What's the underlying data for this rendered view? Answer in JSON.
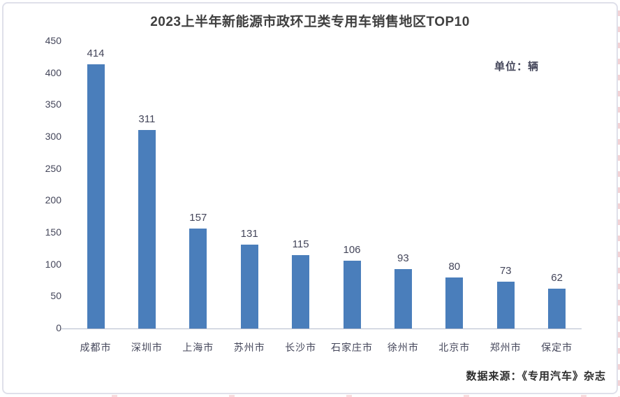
{
  "title": "2023上半年新能源市政环卫类专用车销售地区TOP10",
  "unit_label": "单位：辆",
  "source_label": "数据来源：《专用汽车》杂志",
  "colors": {
    "bar": "#4a7ebb",
    "title_text": "#3f3f3f",
    "axis_text": "#44465a",
    "axis_line": "#b4bbcc",
    "card_border": "#dfe0ea",
    "source_text": "#2d2d2d",
    "edge_mark": "#e49aa2"
  },
  "chart_data": {
    "type": "bar",
    "title": "2023上半年新能源市政环卫类专用车销售地区TOP10",
    "categories": [
      "成都市",
      "深圳市",
      "上海市",
      "苏州市",
      "长沙市",
      "石家庄市",
      "徐州市",
      "北京市",
      "郑州市",
      "保定市"
    ],
    "values": [
      414,
      311,
      157,
      131,
      115,
      106,
      93,
      80,
      73,
      62
    ],
    "xlabel": "",
    "ylabel": "",
    "unit": "辆",
    "ylim": [
      0,
      450
    ],
    "yticks": [
      0,
      50,
      100,
      150,
      200,
      250,
      300,
      350,
      400,
      450
    ],
    "grid": false,
    "data_labels": true,
    "legend": "none"
  }
}
